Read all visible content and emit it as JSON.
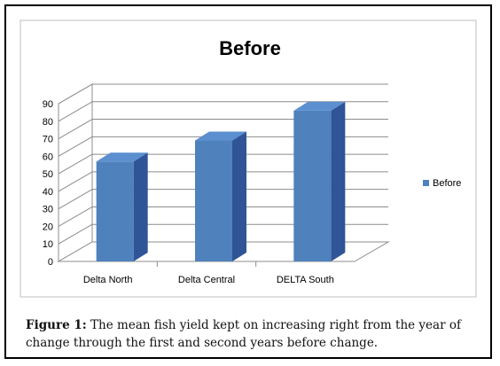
{
  "chart_data": {
    "type": "bar",
    "title": "Before",
    "categories": [
      "Delta North",
      "Delta Central",
      "DELTA South"
    ],
    "series": [
      {
        "name": "Before",
        "values": [
          57,
          69,
          86
        ]
      }
    ],
    "ylim": [
      0,
      90
    ],
    "yticks": [
      "0",
      "10",
      "20",
      "30",
      "40",
      "50",
      "60",
      "70",
      "80",
      "90"
    ],
    "xlabel": "",
    "ylabel": "",
    "grid": true,
    "three_d": true,
    "legend_position": "right",
    "bar_color": "#4f81bd"
  },
  "caption": {
    "label": "Figure 1:",
    "text": "The mean fish yield kept on increasing right from the year of change through the first and second years before change."
  }
}
